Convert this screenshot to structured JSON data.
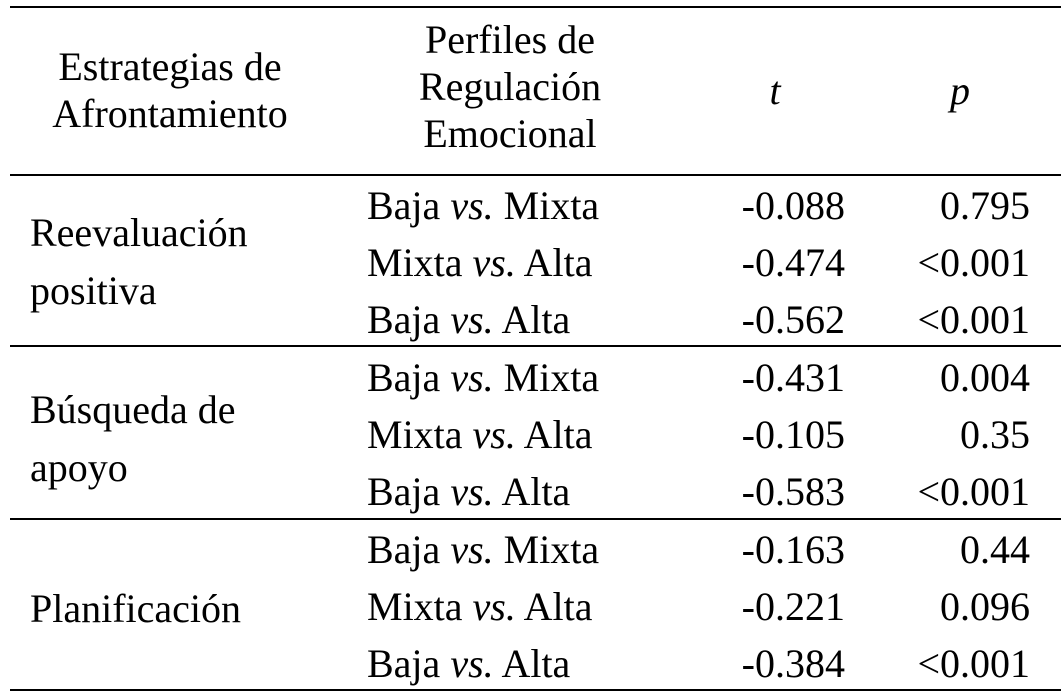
{
  "header": {
    "col1_line1": "Estrategias de",
    "col1_line2": "Afrontamiento",
    "col2_line1": "Perfiles de",
    "col2_line2": "Regulación",
    "col2_line3": "Emocional",
    "col3": "t",
    "col4": "p"
  },
  "groups": [
    {
      "strategy_line1": "Reevaluación",
      "strategy_line2": "positiva",
      "rows": [
        {
          "left": "Baja",
          "vs": "vs.",
          "right": "Mixta",
          "t": "-0.088",
          "p": "0.795"
        },
        {
          "left": "Mixta",
          "vs": "vs.",
          "right": "Alta",
          "t": "-0.474",
          "p": "<0.001"
        },
        {
          "left": "Baja",
          "vs": "vs.",
          "right": "Alta",
          "t": "-0.562",
          "p": "<0.001"
        }
      ]
    },
    {
      "strategy_line1": "Búsqueda de",
      "strategy_line2": "apoyo",
      "rows": [
        {
          "left": "Baja",
          "vs": "vs.",
          "right": "Mixta",
          "t": "-0.431",
          "p": "0.004"
        },
        {
          "left": "Mixta",
          "vs": "vs.",
          "right": "Alta",
          "t": "-0.105",
          "p": "0.35"
        },
        {
          "left": "Baja",
          "vs": "vs.",
          "right": "Alta",
          "t": "-0.583",
          "p": "<0.001"
        }
      ]
    },
    {
      "strategy_line1": "Planificación",
      "rows": [
        {
          "left": "Baja",
          "vs": "vs.",
          "right": "Mixta",
          "t": "-0.163",
          "p": "0.44"
        },
        {
          "left": "Mixta",
          "vs": "vs.",
          "right": "Alta",
          "t": "-0.221",
          "p": "0.096"
        },
        {
          "left": "Baja",
          "vs": "vs.",
          "right": "Alta",
          "t": "-0.384",
          "p": "<0.001"
        }
      ]
    }
  ]
}
